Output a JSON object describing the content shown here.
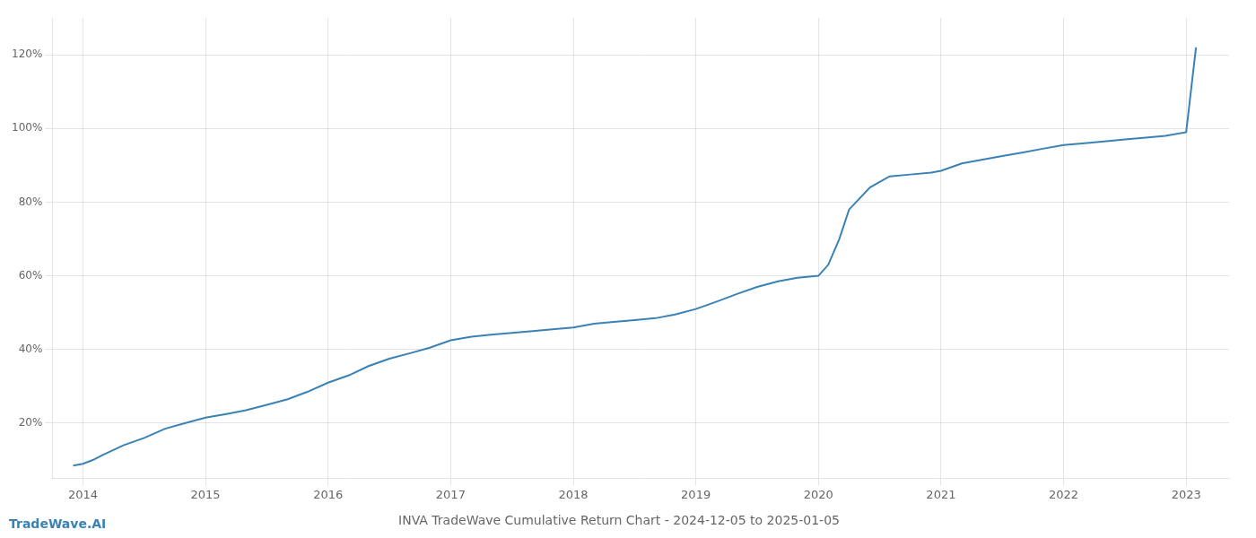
{
  "chart_data": {
    "type": "line",
    "title": "INVA TradeWave Cumulative Return Chart - 2024-12-05 to 2025-01-05",
    "annotations": [
      "TradeWave.AI"
    ],
    "color": "#3a82b5",
    "grid": true,
    "x": [
      2013.92,
      2014.0,
      2014.08,
      2014.17,
      2014.33,
      2014.5,
      2014.67,
      2014.83,
      2015.0,
      2015.17,
      2015.33,
      2015.5,
      2015.67,
      2015.83,
      2016.0,
      2016.17,
      2016.33,
      2016.5,
      2016.67,
      2016.83,
      2017.0,
      2017.17,
      2017.33,
      2017.5,
      2017.67,
      2017.83,
      2018.0,
      2018.17,
      2018.33,
      2018.5,
      2018.67,
      2018.83,
      2019.0,
      2019.17,
      2019.33,
      2019.5,
      2019.67,
      2019.83,
      2020.0,
      2020.08,
      2020.17,
      2020.25,
      2020.42,
      2020.58,
      2020.75,
      2020.92,
      2021.0,
      2021.17,
      2021.33,
      2021.5,
      2021.67,
      2021.83,
      2022.0,
      2022.17,
      2022.33,
      2022.5,
      2022.67,
      2022.83,
      2023.0,
      2023.08
    ],
    "values": [
      8.5,
      9.0,
      10.0,
      11.5,
      14.0,
      16.0,
      18.5,
      20.0,
      21.5,
      22.5,
      23.5,
      25.0,
      26.5,
      28.5,
      31.0,
      33.0,
      35.5,
      37.5,
      39.0,
      40.5,
      42.5,
      43.5,
      44.0,
      44.5,
      45.0,
      45.5,
      46.0,
      47.0,
      47.5,
      48.0,
      48.5,
      49.5,
      51.0,
      53.0,
      55.0,
      57.0,
      58.5,
      59.5,
      60.0,
      63.0,
      70.0,
      78.0,
      84.0,
      87.0,
      87.5,
      88.0,
      88.5,
      90.5,
      91.5,
      92.5,
      93.5,
      94.5,
      95.5,
      96.0,
      96.5,
      97.0,
      97.5,
      98.0,
      99.0,
      122.0
    ],
    "xlim": [
      2013.75,
      2023.35
    ],
    "xticks": [
      2014,
      2015,
      2016,
      2017,
      2018,
      2019,
      2020,
      2021,
      2022,
      2023
    ],
    "ylim": [
      5,
      130
    ],
    "yticks": [
      {
        "value": 20,
        "label": "20%"
      },
      {
        "value": 40,
        "label": "40%"
      },
      {
        "value": 60,
        "label": "60%"
      },
      {
        "value": 80,
        "label": "80%"
      },
      {
        "value": 100,
        "label": "100%"
      },
      {
        "value": 120,
        "label": "120%"
      }
    ]
  }
}
